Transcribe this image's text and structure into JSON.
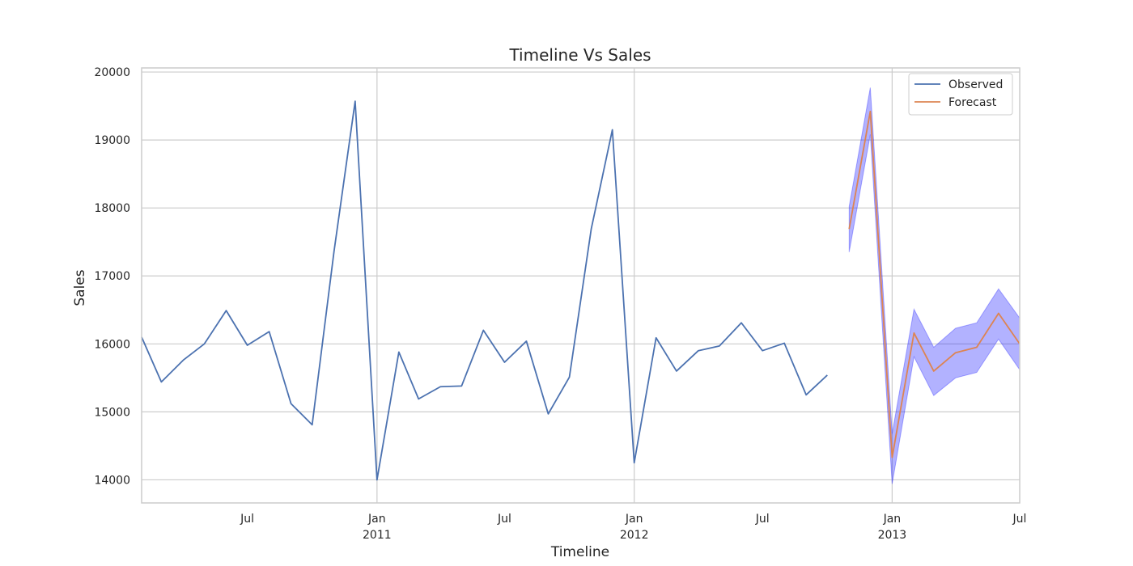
{
  "chart_data": {
    "type": "line",
    "title": "Timeline Vs Sales",
    "xlabel": "Timeline",
    "ylabel": "Sales",
    "xlim": [
      "2010-02-01",
      "2013-07-01"
    ],
    "ylim": [
      13660,
      20060
    ],
    "grid": true,
    "legend_position": "top-right",
    "y_ticks": [
      14000,
      15000,
      16000,
      17000,
      18000,
      19000,
      20000
    ],
    "x_ticks": [
      {
        "date": "2010-07-01",
        "label": "Jul",
        "sublabel": ""
      },
      {
        "date": "2011-01-01",
        "label": "Jan",
        "sublabel": "2011"
      },
      {
        "date": "2011-07-01",
        "label": "Jul",
        "sublabel": ""
      },
      {
        "date": "2012-01-01",
        "label": "Jan",
        "sublabel": "2012"
      },
      {
        "date": "2012-07-01",
        "label": "Jul",
        "sublabel": ""
      },
      {
        "date": "2013-01-01",
        "label": "Jan",
        "sublabel": "2013"
      },
      {
        "date": "2013-07-01",
        "label": "Jul",
        "sublabel": ""
      }
    ],
    "series": [
      {
        "name": "Observed",
        "color": "#4c72b0",
        "points": [
          {
            "x": "2010-02-01",
            "y": 16100
          },
          {
            "x": "2010-03-01",
            "y": 15440
          },
          {
            "x": "2010-04-01",
            "y": 15760
          },
          {
            "x": "2010-05-01",
            "y": 16000
          },
          {
            "x": "2010-06-01",
            "y": 16490
          },
          {
            "x": "2010-07-01",
            "y": 15980
          },
          {
            "x": "2010-08-01",
            "y": 16180
          },
          {
            "x": "2010-09-01",
            "y": 15120
          },
          {
            "x": "2010-10-01",
            "y": 14810
          },
          {
            "x": "2010-11-01",
            "y": 17360
          },
          {
            "x": "2010-12-01",
            "y": 19570
          },
          {
            "x": "2011-01-01",
            "y": 14000
          },
          {
            "x": "2011-02-01",
            "y": 15880
          },
          {
            "x": "2011-03-01",
            "y": 15190
          },
          {
            "x": "2011-04-01",
            "y": 15370
          },
          {
            "x": "2011-05-01",
            "y": 15380
          },
          {
            "x": "2011-06-01",
            "y": 16200
          },
          {
            "x": "2011-07-01",
            "y": 15730
          },
          {
            "x": "2011-08-01",
            "y": 16040
          },
          {
            "x": "2011-09-01",
            "y": 14970
          },
          {
            "x": "2011-10-01",
            "y": 15510
          },
          {
            "x": "2011-11-01",
            "y": 17690
          },
          {
            "x": "2011-12-01",
            "y": 19150
          },
          {
            "x": "2012-01-01",
            "y": 14250
          },
          {
            "x": "2012-02-01",
            "y": 16090
          },
          {
            "x": "2012-03-01",
            "y": 15600
          },
          {
            "x": "2012-04-01",
            "y": 15900
          },
          {
            "x": "2012-05-01",
            "y": 15970
          },
          {
            "x": "2012-06-01",
            "y": 16310
          },
          {
            "x": "2012-07-01",
            "y": 15900
          },
          {
            "x": "2012-08-01",
            "y": 16010
          },
          {
            "x": "2012-09-01",
            "y": 15250
          },
          {
            "x": "2012-10-01",
            "y": 15540
          }
        ]
      },
      {
        "name": "Forecast",
        "color": "#dd8452",
        "points": [
          {
            "x": "2012-11-01",
            "y": 17690
          },
          {
            "x": "2012-12-01",
            "y": 19420
          },
          {
            "x": "2013-01-01",
            "y": 14330
          },
          {
            "x": "2013-02-01",
            "y": 16160
          },
          {
            "x": "2013-03-01",
            "y": 15600
          },
          {
            "x": "2013-04-01",
            "y": 15870
          },
          {
            "x": "2013-05-01",
            "y": 15950
          },
          {
            "x": "2013-06-01",
            "y": 16450
          },
          {
            "x": "2013-07-01",
            "y": 16000
          }
        ]
      }
    ],
    "confidence_band": {
      "color": "#0000ff",
      "points": [
        {
          "x": "2012-11-01",
          "lower": 17350,
          "upper": 18020
        },
        {
          "x": "2012-12-01",
          "lower": 19080,
          "upper": 19770
        },
        {
          "x": "2013-01-01",
          "lower": 13940,
          "upper": 14680
        },
        {
          "x": "2013-02-01",
          "lower": 15810,
          "upper": 16510
        },
        {
          "x": "2013-03-01",
          "lower": 15240,
          "upper": 15950
        },
        {
          "x": "2013-04-01",
          "lower": 15500,
          "upper": 16230
        },
        {
          "x": "2013-05-01",
          "lower": 15580,
          "upper": 16310
        },
        {
          "x": "2013-06-01",
          "lower": 16070,
          "upper": 16810
        },
        {
          "x": "2013-07-01",
          "lower": 15620,
          "upper": 16380
        }
      ]
    }
  }
}
